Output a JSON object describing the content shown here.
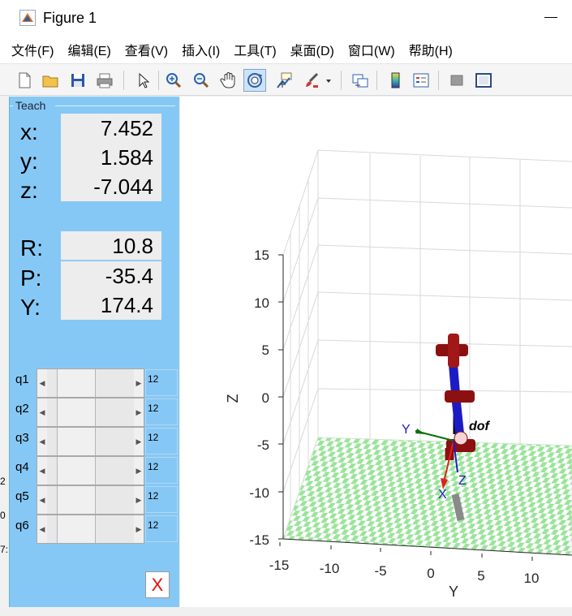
{
  "window": {
    "title": "Figure 1"
  },
  "menu": [
    "文件(F)",
    "编辑(E)",
    "查看(V)",
    "插入(I)",
    "工具(T)",
    "桌面(D)",
    "窗口(W)",
    "帮助(H)"
  ],
  "toolbar": {
    "buttons": [
      {
        "name": "new-figure-icon"
      },
      {
        "name": "open-file-icon"
      },
      {
        "name": "save-icon"
      },
      {
        "name": "print-icon"
      },
      {
        "name": "pointer-icon"
      },
      {
        "name": "zoom-in-icon"
      },
      {
        "name": "zoom-out-icon"
      },
      {
        "name": "pan-hand-icon"
      },
      {
        "name": "rotate-3d-icon",
        "active": true
      },
      {
        "name": "data-cursor-icon"
      },
      {
        "name": "brush-icon"
      },
      {
        "name": "link-plot-icon"
      },
      {
        "name": "colorbar-icon"
      },
      {
        "name": "legend-icon"
      },
      {
        "name": "hide-plot-tools-icon"
      },
      {
        "name": "show-plot-tools-icon"
      }
    ]
  },
  "teach": {
    "legend": "Teach",
    "position": [
      {
        "label": "x:",
        "value": "7.452"
      },
      {
        "label": "y:",
        "value": "1.584"
      },
      {
        "label": "z:",
        "value": "-7.044"
      }
    ],
    "orientation": [
      {
        "label": "R:",
        "value": "10.8"
      },
      {
        "label": "P:",
        "value": "-35.4"
      },
      {
        "label": "Y:",
        "value": "174.4"
      }
    ],
    "joints": [
      {
        "label": "q1",
        "value": "12"
      },
      {
        "label": "q2",
        "value": "12"
      },
      {
        "label": "q3",
        "value": "12"
      },
      {
        "label": "q4",
        "value": "12"
      },
      {
        "label": "q5",
        "value": "12"
      },
      {
        "label": "q6",
        "value": "12"
      }
    ],
    "close_label": "X"
  },
  "background_window": {
    "fragments": [
      "2",
      "0",
      "7:"
    ]
  },
  "plot": {
    "zlabel": "Z",
    "ylabel": "Y",
    "z_ticks": [
      "15",
      "10",
      "5",
      "0",
      "-5",
      "-10",
      "-15"
    ],
    "y_ticks": [
      "-15",
      "-10",
      "-5",
      "0",
      "5",
      "10"
    ],
    "robot_name": "dof",
    "frame_labels": {
      "x": "X",
      "y": "Y",
      "z": "Z"
    },
    "colors": {
      "floor_a": "#9be39b",
      "floor_b": "#ffffff",
      "link": "#1c1cc4",
      "joint": "#8c1010",
      "grid": "#d9d9d9"
    }
  }
}
